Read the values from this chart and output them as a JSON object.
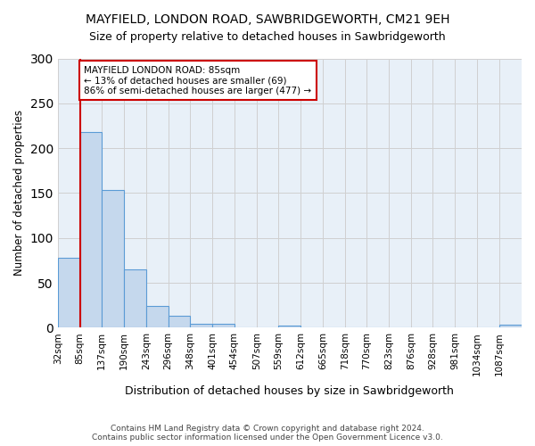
{
  "title": "MAYFIELD, LONDON ROAD, SAWBRIDGEWORTH, CM21 9EH",
  "subtitle": "Size of property relative to detached houses in Sawbridgeworth",
  "xlabel": "Distribution of detached houses by size in Sawbridgeworth",
  "ylabel": "Number of detached properties",
  "footer1": "Contains HM Land Registry data © Crown copyright and database right 2024.",
  "footer2": "Contains public sector information licensed under the Open Government Licence v3.0.",
  "bin_edges": [
    32,
    85,
    137,
    190,
    243,
    296,
    348,
    401,
    454,
    507,
    559,
    612,
    665,
    718,
    770,
    823,
    876,
    928,
    981,
    1034,
    1087,
    1140
  ],
  "bar_heights": [
    78,
    218,
    153,
    65,
    24,
    13,
    4,
    4,
    0,
    0,
    2,
    0,
    0,
    0,
    0,
    0,
    0,
    0,
    0,
    0,
    3
  ],
  "bar_color": "#c5d8ed",
  "bar_edge_color": "#5b9bd5",
  "ref_line_x": 85,
  "ref_line_color": "#cc0000",
  "annotation_text": "MAYFIELD LONDON ROAD: 85sqm\n← 13% of detached houses are smaller (69)\n86% of semi-detached houses are larger (477) →",
  "annotation_box_color": "#ffffff",
  "annotation_box_edge_color": "#cc0000",
  "ylim": [
    0,
    300
  ],
  "yticks": [
    0,
    50,
    100,
    150,
    200,
    250,
    300
  ],
  "background_color": "#ffffff",
  "axes_bg_color": "#e8f0f8",
  "grid_color": "#d0d0d0",
  "tick_labels": [
    "32sqm",
    "85sqm",
    "137sqm",
    "190sqm",
    "243sqm",
    "296sqm",
    "348sqm",
    "401sqm",
    "454sqm",
    "507sqm",
    "559sqm",
    "612sqm",
    "665sqm",
    "718sqm",
    "770sqm",
    "823sqm",
    "876sqm",
    "928sqm",
    "981sqm",
    "1034sqm",
    "1087sqm"
  ]
}
